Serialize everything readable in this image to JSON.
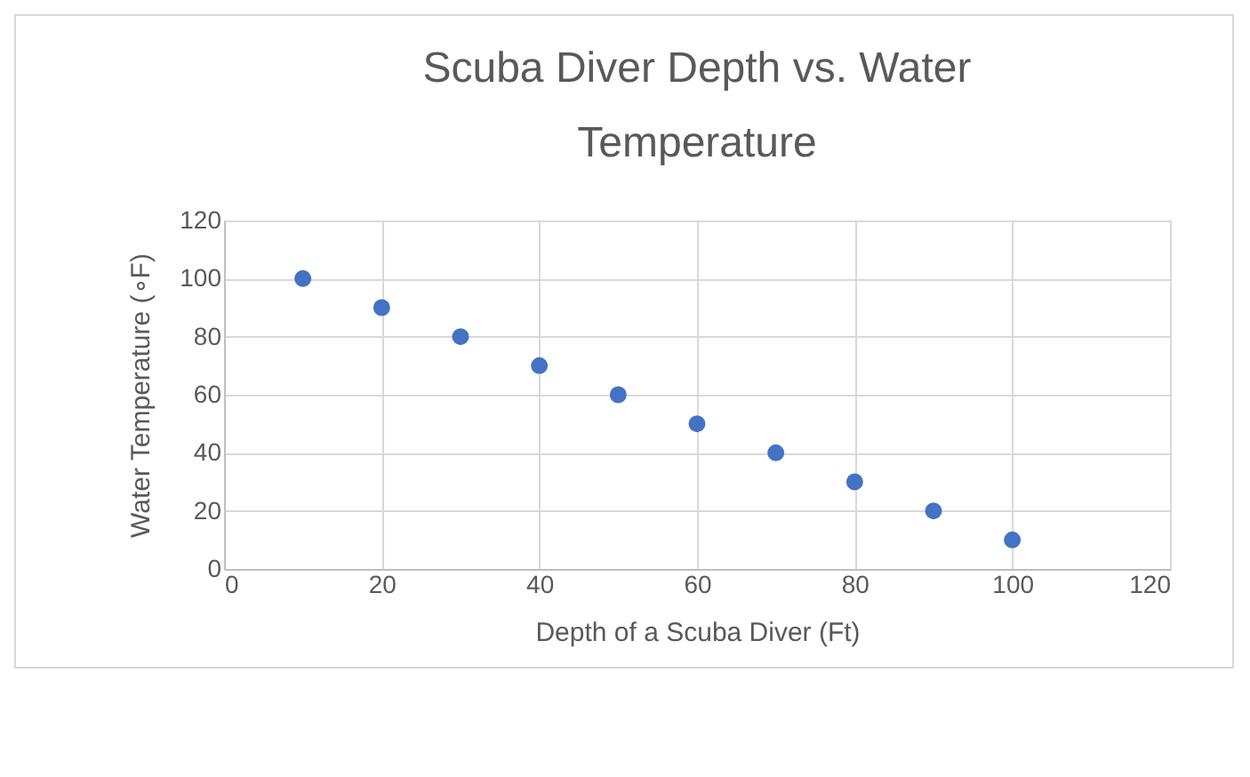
{
  "chart_data": {
    "type": "scatter",
    "title": "Scuba Diver Depth vs. Water Temperature",
    "xlabel": "Depth of a Scuba Diver (Ft)",
    "ylabel": "Water Temperature (∘F)",
    "x": [
      10,
      20,
      30,
      40,
      50,
      60,
      70,
      80,
      90,
      100
    ],
    "series": [
      {
        "color": "#4472c4",
        "values": [
          100,
          90,
          80,
          70,
          60,
          50,
          40,
          30,
          20,
          10
        ]
      }
    ],
    "xlim": [
      0,
      120
    ],
    "xticks": [
      0,
      20,
      40,
      60,
      80,
      100,
      120
    ],
    "ylim": [
      0,
      120
    ],
    "yticks": [
      0,
      20,
      40,
      60,
      80,
      100,
      120
    ],
    "grid": true,
    "marker": "circle",
    "legend": false
  }
}
